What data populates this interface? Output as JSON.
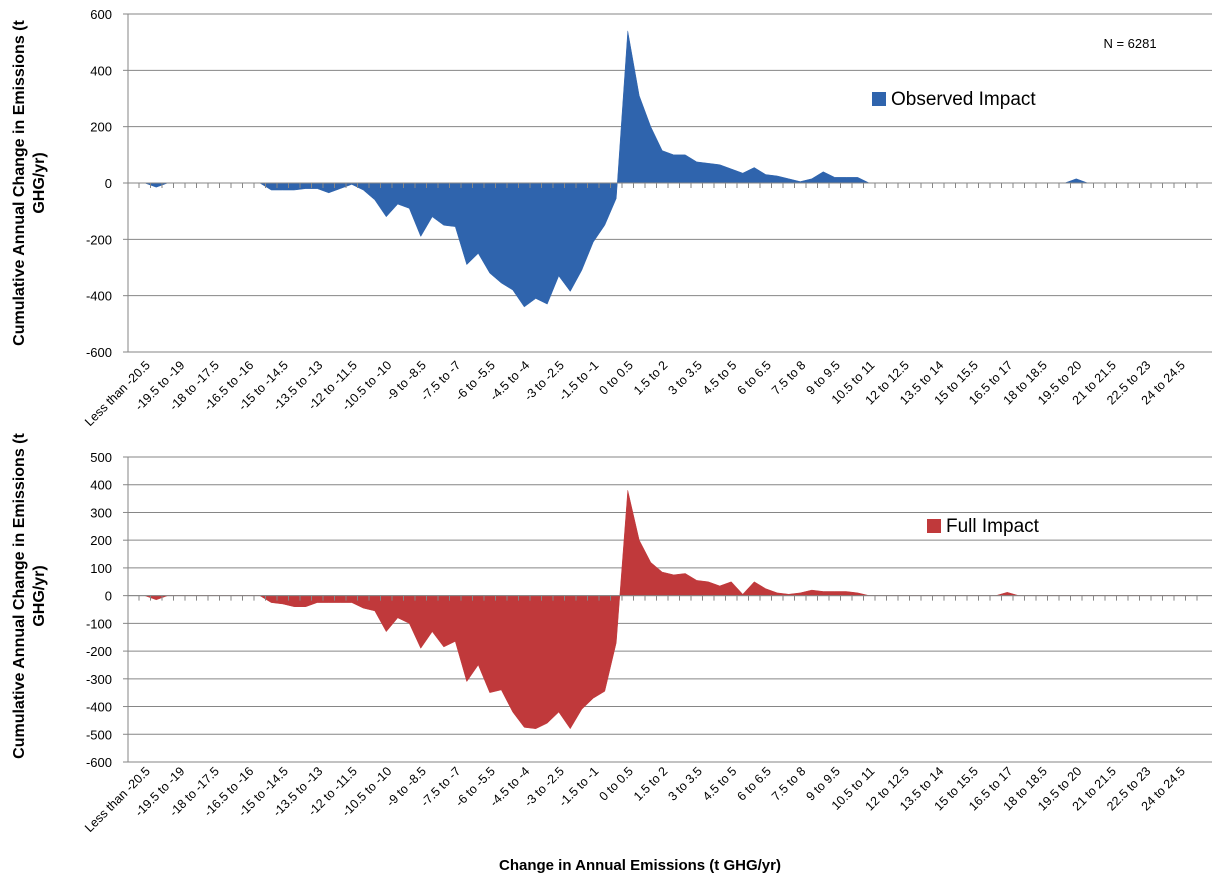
{
  "chart_data": [
    {
      "type": "area",
      "annotation": "N = 6281",
      "y_label": "Cumulative Annual Change in Emissions (t GHG/yr)",
      "legend": "right",
      "categories": [
        "Less than -20.5",
        null,
        null,
        "-19.5 to -19",
        null,
        null,
        "-18 to -17.5",
        null,
        null,
        "-16.5 to -16",
        null,
        null,
        "-15 to -14.5",
        null,
        null,
        "-13.5 to -13",
        null,
        null,
        "-12 to -11.5",
        null,
        null,
        "-10.5 to -10",
        null,
        null,
        "-9 to -8.5",
        null,
        null,
        "-7.5 to -7",
        null,
        null,
        "-6 to -5.5",
        null,
        null,
        "-4.5 to -4",
        null,
        null,
        "-3 to -2.5",
        null,
        null,
        "-1.5 to -1",
        null,
        null,
        "0 to 0.5",
        null,
        null,
        "1.5 to 2",
        null,
        null,
        "3 to 3.5",
        null,
        null,
        "4.5 to 5",
        null,
        null,
        "6 to 6.5",
        null,
        null,
        "7.5 to 8",
        null,
        null,
        "9 to 9.5",
        null,
        null,
        "10.5 to 11",
        null,
        null,
        "12 to 12.5",
        null,
        null,
        "13.5 to 14",
        null,
        null,
        "15 to 15.5",
        null,
        null,
        "16.5 to 17",
        null,
        null,
        "18 to 18.5",
        null,
        null,
        "19.5 to 20",
        null,
        null,
        "21 to 21.5",
        null,
        null,
        "22.5 to 23",
        null,
        null,
        "24 to 24.5",
        null
      ],
      "series": [
        {
          "name": "Observed Impact",
          "color": "#2f64ad",
          "values": [
            0,
            -15,
            0,
            0,
            0,
            0,
            0,
            0,
            0,
            0,
            0,
            -25,
            -25,
            -25,
            -20,
            -20,
            -35,
            -20,
            -5,
            -25,
            -60,
            -120,
            -75,
            -90,
            -190,
            -120,
            -150,
            -155,
            -290,
            -250,
            -320,
            -355,
            -380,
            -440,
            -410,
            -430,
            -330,
            -385,
            -310,
            -210,
            -150,
            -55,
            540,
            310,
            200,
            115,
            100,
            100,
            75,
            70,
            65,
            50,
            35,
            55,
            30,
            25,
            15,
            5,
            15,
            40,
            20,
            20,
            20,
            0,
            0,
            0,
            0,
            0,
            0,
            0,
            0,
            0,
            0,
            0,
            0,
            0,
            0,
            0,
            0,
            0,
            0,
            15,
            0,
            0,
            0,
            0,
            0,
            0,
            0,
            0,
            0,
            0
          ]
        }
      ],
      "ylim": [
        -600,
        600
      ],
      "yticks": [
        -600,
        -400,
        -200,
        0,
        200,
        400,
        600
      ],
      "grid": true
    },
    {
      "type": "area",
      "y_label": "Cumulative Annual Change in Emissions (t GHG/yr)",
      "x_label": "Change in Annual Emissions (t GHG/yr)",
      "legend": "right",
      "categories": [
        "Less than -20.5",
        null,
        null,
        "-19.5 to -19",
        null,
        null,
        "-18 to -17.5",
        null,
        null,
        "-16.5 to -16",
        null,
        null,
        "-15 to -14.5",
        null,
        null,
        "-13.5 to -13",
        null,
        null,
        "-12 to -11.5",
        null,
        null,
        "-10.5 to -10",
        null,
        null,
        "-9 to -8.5",
        null,
        null,
        "-7.5 to -7",
        null,
        null,
        "-6 to -5.5",
        null,
        null,
        "-4.5 to -4",
        null,
        null,
        "-3 to -2.5",
        null,
        null,
        "-1.5 to -1",
        null,
        null,
        "0 to 0.5",
        null,
        null,
        "1.5 to 2",
        null,
        null,
        "3 to 3.5",
        null,
        null,
        "4.5 to 5",
        null,
        null,
        "6 to 6.5",
        null,
        null,
        "7.5 to 8",
        null,
        null,
        "9 to 9.5",
        null,
        null,
        "10.5 to 11",
        null,
        null,
        "12 to 12.5",
        null,
        null,
        "13.5 to 14",
        null,
        null,
        "15 to 15.5",
        null,
        null,
        "16.5 to 17",
        null,
        null,
        "18 to 18.5",
        null,
        null,
        "19.5 to 20",
        null,
        null,
        "21 to 21.5",
        null,
        null,
        "22.5 to 23",
        null,
        null,
        "24 to 24.5",
        null
      ],
      "series": [
        {
          "name": "Full Impact",
          "color": "#c0393b",
          "values": [
            0,
            -15,
            0,
            0,
            0,
            0,
            0,
            0,
            0,
            0,
            0,
            -25,
            -30,
            -40,
            -40,
            -25,
            -25,
            -25,
            -25,
            -45,
            -55,
            -130,
            -80,
            -100,
            -190,
            -130,
            -185,
            -165,
            -310,
            -250,
            -350,
            -340,
            -420,
            -475,
            -480,
            -460,
            -420,
            -480,
            -410,
            -370,
            -345,
            -170,
            380,
            200,
            120,
            85,
            75,
            80,
            55,
            50,
            35,
            50,
            5,
            50,
            25,
            10,
            5,
            10,
            20,
            15,
            15,
            15,
            10,
            0,
            0,
            0,
            0,
            0,
            0,
            0,
            0,
            0,
            0,
            0,
            0,
            12,
            0,
            0,
            0,
            0,
            0,
            0,
            0,
            0,
            0,
            0,
            0,
            0,
            0,
            0,
            0,
            0
          ]
        }
      ],
      "ylim": [
        -600,
        500
      ],
      "yticks": [
        -600,
        -500,
        -400,
        -300,
        -200,
        -100,
        0,
        100,
        200,
        300,
        400,
        500
      ],
      "grid": true
    }
  ]
}
